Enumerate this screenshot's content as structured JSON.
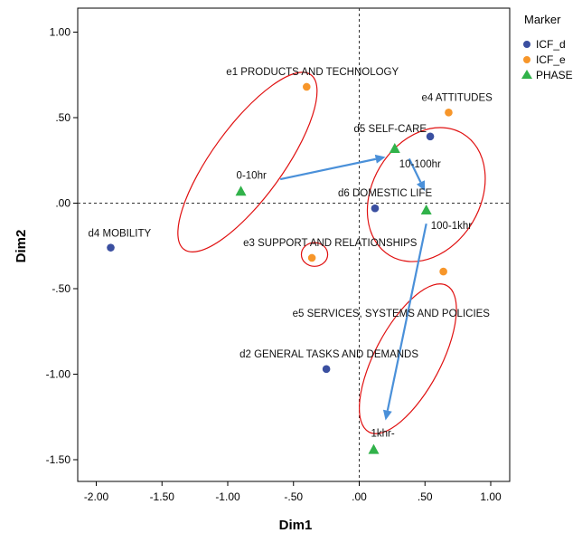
{
  "chart_data": {
    "type": "scatter",
    "xlabel": "Dim1",
    "ylabel": "Dim2",
    "xlim": [
      -2.0,
      1.0
    ],
    "ylim": [
      -1.5,
      1.0
    ],
    "x_ticks": [
      -2.0,
      -1.5,
      -1.0,
      -0.5,
      0.0,
      0.5,
      1.0
    ],
    "x_tick_labels": [
      "-2.00",
      "-1.50",
      "-1.00",
      "-.50",
      ".00",
      ".50",
      "1.00"
    ],
    "y_ticks": [
      1.0,
      0.5,
      0.0,
      -0.5,
      -1.0,
      -1.5
    ],
    "y_tick_labels": [
      "1.00",
      ".50",
      ".00",
      "-.50",
      "-1.00",
      "-1.50"
    ],
    "reference_lines": {
      "x": 0,
      "y": 0,
      "style": "dashed"
    },
    "legend": {
      "title": "Marker",
      "position": "top-right, outside",
      "entries": [
        {
          "name": "ICF_d",
          "shape": "circle",
          "color": "#3a4fa0"
        },
        {
          "name": "ICF_e",
          "shape": "circle",
          "color": "#f7962a"
        },
        {
          "name": "PHASE",
          "shape": "triangle",
          "color": "#31b24a"
        }
      ]
    },
    "series": [
      {
        "name": "ICF_d",
        "shape": "circle",
        "color": "#3a4fa0",
        "points": [
          {
            "label": "d4 MOBILITY",
            "x": -1.89,
            "y": -0.26
          },
          {
            "label": "d5 SELF-CARE",
            "x": 0.54,
            "y": 0.39
          },
          {
            "label": "d6 DOMESTIC LIFE",
            "x": 0.12,
            "y": -0.03
          },
          {
            "label": "d2 GENERAL TASKS AND DEMANDS",
            "x": -0.25,
            "y": -0.97
          }
        ]
      },
      {
        "name": "ICF_e",
        "shape": "circle",
        "color": "#f7962a",
        "points": [
          {
            "label": "e1 PRODUCTS AND TECHNOLOGY",
            "x": -0.4,
            "y": 0.68
          },
          {
            "label": "e4 ATTITUDES",
            "x": 0.68,
            "y": 0.53
          },
          {
            "label": "e3 SUPPORT AND RELATIONSHIPS",
            "x": -0.36,
            "y": -0.32
          },
          {
            "label": "e5 SERVICES, SYSTEMS AND POLICIES",
            "x": 0.64,
            "y": -0.4
          }
        ]
      },
      {
        "name": "PHASE",
        "shape": "triangle",
        "color": "#31b24a",
        "points": [
          {
            "label": "0-10hr",
            "x": -0.9,
            "y": 0.07
          },
          {
            "label": "10-100hr",
            "x": 0.27,
            "y": 0.32
          },
          {
            "label": "100-1khr",
            "x": 0.51,
            "y": -0.04
          },
          {
            "label": "1khr-",
            "x": 0.11,
            "y": -1.44
          }
        ]
      }
    ],
    "arrows": [
      {
        "from": [
          -0.6,
          0.14
        ],
        "to": [
          0.2,
          0.27
        ]
      },
      {
        "from": [
          0.38,
          0.26
        ],
        "to": [
          0.5,
          0.07
        ]
      },
      {
        "from": [
          0.51,
          -0.12
        ],
        "to": [
          0.2,
          -1.27
        ]
      }
    ],
    "ellipses": [
      {
        "cx": -0.85,
        "cy": 0.24,
        "rx": 0.82,
        "ry": 0.27,
        "angle_deg": -54
      },
      {
        "cx": 0.51,
        "cy": 0.05,
        "rx": 0.54,
        "ry": 0.41,
        "angle_deg": -59
      },
      {
        "cx": -0.34,
        "cy": -0.3,
        "rx": 0.1,
        "ry": 0.09,
        "angle_deg": 0
      },
      {
        "cx": 0.37,
        "cy": -0.91,
        "rx": 0.63,
        "ry": 0.25,
        "angle_deg": -62
      }
    ]
  }
}
